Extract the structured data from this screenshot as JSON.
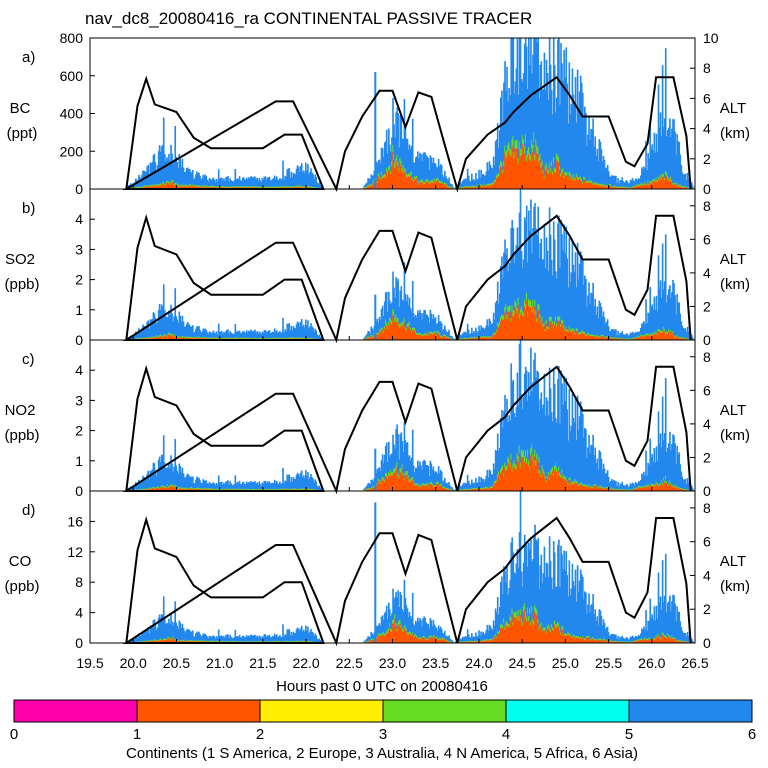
{
  "title": "nav_dc8_20080416_ra CONTINENTAL PASSIVE TRACER",
  "colors": {
    "asia": "#2288ee",
    "europe": "#ff5500",
    "n_america": "#66dd22",
    "australia": "#ffee00",
    "africa": "#00ffee",
    "s_america": "#ff00aa",
    "altitude_line": "#000000"
  },
  "colorbar": {
    "ticks": [
      "0",
      "1",
      "2",
      "3",
      "4",
      "5",
      "6"
    ],
    "colors": [
      "#ff00aa",
      "#ff5500",
      "#ffee00",
      "#66dd22",
      "#00ffee",
      "#2288ee"
    ],
    "label": "Continents (1 S America, 2 Europe, 3 Australia, 4 N America, 5 Africa, 6 Asia)"
  },
  "chart_data": [
    {
      "panel": "a)",
      "type": "area",
      "ylabel_lines": [
        "BC",
        "(ppt)"
      ],
      "ylim": [
        0,
        800
      ],
      "yticks": [
        "0",
        "200",
        "400",
        "600",
        "800"
      ],
      "alt_ticks": [
        "0",
        "2",
        "4",
        "6",
        "8",
        "10"
      ],
      "alt_range": [
        0,
        10
      ],
      "alt_label_lines": [
        "ALT",
        "(km)"
      ],
      "asia_scale": 200,
      "spike": 620
    },
    {
      "panel": "b)",
      "type": "area",
      "ylabel_lines": [
        "SO2",
        "(ppb)"
      ],
      "ylim": [
        0,
        5
      ],
      "yticks": [
        "0",
        "1",
        "2",
        "3",
        "4"
      ],
      "alt_ticks": [
        "0",
        "2",
        "4",
        "6",
        "8"
      ],
      "alt_range": [
        0,
        9
      ],
      "alt_label_lines": [
        "ALT",
        "(km)"
      ],
      "asia_scale": 1.0,
      "spike": 1.5
    },
    {
      "panel": "c)",
      "type": "area",
      "ylabel_lines": [
        "NO2",
        "(ppb)"
      ],
      "ylim": [
        0,
        5
      ],
      "yticks": [
        "0",
        "1",
        "2",
        "3",
        "4"
      ],
      "alt_ticks": [
        "0",
        "2",
        "4",
        "6",
        "8"
      ],
      "alt_range": [
        0,
        9
      ],
      "alt_label_lines": [
        "ALT",
        "(km)"
      ],
      "asia_scale": 1.0,
      "spike": 1.4
    },
    {
      "panel": "d)",
      "type": "area",
      "ylabel_lines": [
        "CO",
        "(ppb)"
      ],
      "ylim": [
        0,
        20
      ],
      "yticks": [
        "0",
        "4",
        "8",
        "12",
        "16"
      ],
      "alt_ticks": [
        "0",
        "2",
        "4",
        "6",
        "8"
      ],
      "alt_range": [
        0,
        9
      ],
      "alt_label_lines": [
        "ALT",
        "(km)"
      ],
      "asia_scale": 3.3,
      "spike": 18.5
    }
  ],
  "x_axis": {
    "xlim": [
      19.5,
      26.5
    ],
    "ticks": [
      "19.5",
      "20.0",
      "20.5",
      "21.0",
      "21.5",
      "22.0",
      "22.5",
      "23.0",
      "23.5",
      "24.0",
      "24.5",
      "25.0",
      "25.5",
      "26.0",
      "26.5"
    ],
    "label": "Hours past 0 UTC on 20080416"
  },
  "europe_profile": [
    [
      19.9,
      0
    ],
    [
      20.1,
      0.04
    ],
    [
      20.3,
      0.1
    ],
    [
      20.45,
      0.16
    ],
    [
      20.5,
      0.08
    ],
    [
      20.8,
      0.06
    ],
    [
      21.0,
      0.04
    ],
    [
      21.6,
      0.04
    ],
    [
      22.0,
      0.05
    ],
    [
      22.1,
      0.02
    ],
    [
      22.15,
      0
    ],
    [
      22.65,
      0
    ],
    [
      22.75,
      0.1
    ],
    [
      22.95,
      0.5
    ],
    [
      23.0,
      0.75
    ],
    [
      23.1,
      0.55
    ],
    [
      23.3,
      0.15
    ],
    [
      23.5,
      0.2
    ],
    [
      23.65,
      0.05
    ],
    [
      23.7,
      0
    ],
    [
      23.8,
      0.03
    ],
    [
      24.05,
      0.08
    ],
    [
      24.15,
      0.1
    ],
    [
      24.3,
      0.75
    ],
    [
      24.4,
      0.9
    ],
    [
      24.5,
      1.0
    ],
    [
      24.65,
      0.95
    ],
    [
      24.75,
      0.4
    ],
    [
      24.9,
      0.6
    ],
    [
      25.0,
      0.3
    ],
    [
      25.3,
      0.15
    ],
    [
      25.55,
      0.05
    ],
    [
      25.75,
      0.02
    ],
    [
      25.85,
      0.1
    ],
    [
      26.0,
      0.15
    ],
    [
      26.15,
      0.3
    ],
    [
      26.3,
      0.08
    ],
    [
      26.45,
      0
    ]
  ],
  "asia_profile": [
    [
      19.9,
      0
    ],
    [
      20.1,
      0.3
    ],
    [
      20.3,
      0.75
    ],
    [
      20.5,
      0.65
    ],
    [
      20.65,
      0.3
    ],
    [
      20.9,
      0.2
    ],
    [
      21.6,
      0.2
    ],
    [
      21.8,
      0.35
    ],
    [
      22.0,
      0.45
    ],
    [
      22.12,
      0.2
    ],
    [
      22.18,
      0
    ],
    [
      22.65,
      0
    ],
    [
      22.8,
      0.35
    ],
    [
      23.0,
      1.0
    ],
    [
      23.2,
      0.7
    ],
    [
      23.5,
      0.45
    ],
    [
      23.65,
      0.15
    ],
    [
      23.7,
      0
    ],
    [
      23.85,
      0.2
    ],
    [
      24.0,
      0.3
    ],
    [
      24.15,
      0.5
    ],
    [
      24.35,
      2.2
    ],
    [
      24.5,
      2.55
    ],
    [
      24.7,
      2.45
    ],
    [
      24.85,
      2.7
    ],
    [
      25.0,
      2.45
    ],
    [
      25.2,
      1.8
    ],
    [
      25.5,
      0.3
    ],
    [
      25.65,
      0.1
    ],
    [
      25.85,
      0.2
    ],
    [
      26.05,
      1.0
    ],
    [
      26.2,
      1.6
    ],
    [
      26.35,
      0.5
    ],
    [
      26.48,
      0
    ]
  ],
  "altitude_profile": [
    [
      19.92,
      0
    ],
    [
      20.05,
      5.5
    ],
    [
      20.15,
      7.3
    ],
    [
      20.25,
      5.6
    ],
    [
      20.5,
      5.1
    ],
    [
      20.7,
      3.4
    ],
    [
      20.9,
      2.7
    ],
    [
      21.5,
      2.7
    ],
    [
      21.75,
      3.6
    ],
    [
      21.95,
      3.6
    ],
    [
      22.2,
      0
    ],
    [
      19.92,
      0
    ],
    [
      21.65,
      5.8
    ],
    [
      21.85,
      5.8
    ],
    [
      22.35,
      0
    ],
    [
      22.45,
      2.5
    ],
    [
      22.65,
      4.8
    ],
    [
      22.85,
      6.5
    ],
    [
      23.0,
      6.5
    ],
    [
      23.15,
      4.1
    ],
    [
      23.3,
      6.4
    ],
    [
      23.45,
      6.1
    ],
    [
      23.6,
      3.0
    ],
    [
      23.75,
      0
    ],
    [
      23.85,
      2.0
    ],
    [
      24.1,
      3.6
    ],
    [
      24.3,
      4.4
    ],
    [
      24.4,
      5.1
    ],
    [
      24.6,
      6.2
    ],
    [
      24.9,
      7.4
    ],
    [
      25.05,
      6.2
    ],
    [
      25.2,
      4.8
    ],
    [
      25.5,
      4.8
    ],
    [
      25.7,
      1.8
    ],
    [
      25.8,
      1.5
    ],
    [
      25.95,
      3.0
    ],
    [
      26.05,
      7.4
    ],
    [
      26.25,
      7.4
    ],
    [
      26.4,
      3.5
    ],
    [
      26.45,
      0
    ]
  ]
}
